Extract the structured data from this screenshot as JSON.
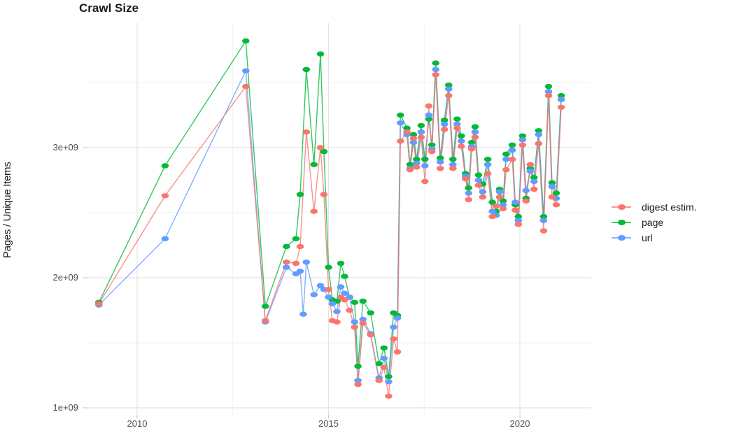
{
  "chart_data": {
    "type": "line",
    "title": "Crawl Size",
    "xlabel": "",
    "ylabel": "Pages / Unique Items",
    "values_unit": "1e9 (billions), as labeled on y-axis",
    "x_axis": {
      "ticks": [
        {
          "value": 2010,
          "label": "2010"
        },
        {
          "value": 2015,
          "label": "2015"
        },
        {
          "value": 2020,
          "label": "2020"
        }
      ],
      "minor_gridlines": [
        2012.5,
        2017.5
      ],
      "range": [
        2008.7,
        2021.85
      ]
    },
    "y_axis": {
      "ticks": [
        {
          "value": 1.0,
          "label": "1e+09"
        },
        {
          "value": 2.0,
          "label": "2e+09"
        },
        {
          "value": 3.0,
          "label": "3e+09"
        }
      ],
      "minor_gridlines": [
        1.5,
        2.5,
        3.5
      ],
      "range": [
        0.95,
        3.96
      ]
    },
    "grid": true,
    "legend_position": "right",
    "series": [
      {
        "name": "digest estim.",
        "color": "#F8766D",
        "points": [
          [
            2009.0,
            1.8
          ],
          [
            2010.73,
            2.63
          ],
          [
            2012.84,
            3.47
          ],
          [
            2013.35,
            1.67
          ],
          [
            2013.9,
            2.12
          ],
          [
            2014.15,
            2.11
          ],
          [
            2014.26,
            2.24
          ],
          [
            2014.42,
            3.12
          ],
          [
            2014.62,
            2.51
          ],
          [
            2014.79,
            3.0
          ],
          [
            2014.88,
            2.64
          ],
          [
            2015.0,
            1.91
          ],
          [
            2015.1,
            1.67
          ],
          [
            2015.22,
            1.66
          ],
          [
            2015.32,
            1.85
          ],
          [
            2015.42,
            1.83
          ],
          [
            2015.55,
            1.75
          ],
          [
            2015.68,
            1.62
          ],
          [
            2015.77,
            1.18
          ],
          [
            2015.9,
            1.65
          ],
          [
            2016.1,
            1.56
          ],
          [
            2016.32,
            1.21
          ],
          [
            2016.45,
            1.31
          ],
          [
            2016.57,
            1.09
          ],
          [
            2016.7,
            1.53
          ],
          [
            2016.8,
            1.43
          ],
          [
            2016.88,
            3.05
          ],
          [
            2017.05,
            3.12
          ],
          [
            2017.13,
            2.83
          ],
          [
            2017.22,
            3.07
          ],
          [
            2017.3,
            2.85
          ],
          [
            2017.42,
            3.08
          ],
          [
            2017.52,
            2.74
          ],
          [
            2017.62,
            3.32
          ],
          [
            2017.7,
            2.97
          ],
          [
            2017.8,
            3.56
          ],
          [
            2017.92,
            2.84
          ],
          [
            2018.03,
            3.14
          ],
          [
            2018.14,
            3.4
          ],
          [
            2018.25,
            2.84
          ],
          [
            2018.36,
            3.15
          ],
          [
            2018.47,
            3.01
          ],
          [
            2018.58,
            2.76
          ],
          [
            2018.66,
            2.6
          ],
          [
            2018.74,
            2.99
          ],
          [
            2018.83,
            3.08
          ],
          [
            2018.92,
            2.71
          ],
          [
            2019.03,
            2.62
          ],
          [
            2019.16,
            2.8
          ],
          [
            2019.28,
            2.47
          ],
          [
            2019.38,
            2.55
          ],
          [
            2019.47,
            2.62
          ],
          [
            2019.56,
            2.53
          ],
          [
            2019.64,
            2.83
          ],
          [
            2019.8,
            2.91
          ],
          [
            2019.88,
            2.52
          ],
          [
            2019.96,
            2.41
          ],
          [
            2020.07,
            3.02
          ],
          [
            2020.16,
            2.59
          ],
          [
            2020.27,
            2.87
          ],
          [
            2020.37,
            2.68
          ],
          [
            2020.49,
            3.03
          ],
          [
            2020.62,
            2.36
          ],
          [
            2020.75,
            3.4
          ],
          [
            2020.84,
            2.62
          ],
          [
            2020.95,
            2.56
          ],
          [
            2021.08,
            3.31
          ]
        ]
      },
      {
        "name": "page",
        "color": "#00BA38",
        "points": [
          [
            2009.0,
            1.81
          ],
          [
            2010.73,
            2.86
          ],
          [
            2012.84,
            3.82
          ],
          [
            2013.35,
            1.78
          ],
          [
            2013.9,
            2.24
          ],
          [
            2014.15,
            2.3
          ],
          [
            2014.26,
            2.64
          ],
          [
            2014.42,
            3.6
          ],
          [
            2014.62,
            2.87
          ],
          [
            2014.79,
            3.72
          ],
          [
            2014.88,
            2.97
          ],
          [
            2015.0,
            2.08
          ],
          [
            2015.1,
            1.83
          ],
          [
            2015.22,
            1.82
          ],
          [
            2015.32,
            2.11
          ],
          [
            2015.42,
            2.01
          ],
          [
            2015.55,
            1.85
          ],
          [
            2015.68,
            1.81
          ],
          [
            2015.77,
            1.32
          ],
          [
            2015.9,
            1.82
          ],
          [
            2016.1,
            1.73
          ],
          [
            2016.32,
            1.34
          ],
          [
            2016.45,
            1.46
          ],
          [
            2016.57,
            1.24
          ],
          [
            2016.7,
            1.73
          ],
          [
            2016.8,
            1.71
          ],
          [
            2016.88,
            3.25
          ],
          [
            2017.05,
            3.15
          ],
          [
            2017.13,
            2.87
          ],
          [
            2017.22,
            3.1
          ],
          [
            2017.3,
            2.91
          ],
          [
            2017.42,
            3.17
          ],
          [
            2017.52,
            2.91
          ],
          [
            2017.62,
            3.22
          ],
          [
            2017.7,
            3.02
          ],
          [
            2017.8,
            3.65
          ],
          [
            2017.92,
            2.92
          ],
          [
            2018.03,
            3.21
          ],
          [
            2018.14,
            3.48
          ],
          [
            2018.25,
            2.91
          ],
          [
            2018.36,
            3.22
          ],
          [
            2018.47,
            3.09
          ],
          [
            2018.58,
            2.8
          ],
          [
            2018.66,
            2.69
          ],
          [
            2018.74,
            3.04
          ],
          [
            2018.83,
            3.16
          ],
          [
            2018.92,
            2.79
          ],
          [
            2019.03,
            2.72
          ],
          [
            2019.16,
            2.91
          ],
          [
            2019.28,
            2.58
          ],
          [
            2019.38,
            2.51
          ],
          [
            2019.47,
            2.68
          ],
          [
            2019.56,
            2.59
          ],
          [
            2019.64,
            2.95
          ],
          [
            2019.8,
            3.02
          ],
          [
            2019.88,
            2.56
          ],
          [
            2019.96,
            2.47
          ],
          [
            2020.07,
            3.09
          ],
          [
            2020.16,
            2.61
          ],
          [
            2020.27,
            2.84
          ],
          [
            2020.37,
            2.77
          ],
          [
            2020.49,
            3.13
          ],
          [
            2020.62,
            2.47
          ],
          [
            2020.75,
            3.47
          ],
          [
            2020.84,
            2.73
          ],
          [
            2020.95,
            2.65
          ],
          [
            2021.08,
            3.4
          ]
        ]
      },
      {
        "name": "url",
        "color": "#619CFF",
        "points": [
          [
            2009.0,
            1.79
          ],
          [
            2010.73,
            2.3
          ],
          [
            2012.84,
            3.59
          ],
          [
            2013.35,
            1.66
          ],
          [
            2013.9,
            2.08
          ],
          [
            2014.15,
            2.03
          ],
          [
            2014.26,
            2.05
          ],
          [
            2014.34,
            1.72
          ],
          [
            2014.42,
            2.12
          ],
          [
            2014.62,
            1.87
          ],
          [
            2014.79,
            1.94
          ],
          [
            2014.88,
            1.91
          ],
          [
            2015.0,
            1.85
          ],
          [
            2015.1,
            1.8
          ],
          [
            2015.22,
            1.74
          ],
          [
            2015.32,
            1.93
          ],
          [
            2015.42,
            1.88
          ],
          [
            2015.55,
            1.85
          ],
          [
            2015.68,
            1.66
          ],
          [
            2015.77,
            1.21
          ],
          [
            2015.9,
            1.68
          ],
          [
            2016.1,
            1.57
          ],
          [
            2016.32,
            1.23
          ],
          [
            2016.45,
            1.38
          ],
          [
            2016.57,
            1.2
          ],
          [
            2016.7,
            1.62
          ],
          [
            2016.8,
            1.69
          ],
          [
            2016.88,
            3.19
          ],
          [
            2017.05,
            3.1
          ],
          [
            2017.13,
            2.84
          ],
          [
            2017.22,
            3.04
          ],
          [
            2017.3,
            2.88
          ],
          [
            2017.42,
            3.12
          ],
          [
            2017.52,
            2.86
          ],
          [
            2017.62,
            3.25
          ],
          [
            2017.7,
            2.99
          ],
          [
            2017.8,
            3.6
          ],
          [
            2017.92,
            2.89
          ],
          [
            2018.03,
            3.18
          ],
          [
            2018.14,
            3.45
          ],
          [
            2018.25,
            2.87
          ],
          [
            2018.36,
            3.18
          ],
          [
            2018.47,
            3.05
          ],
          [
            2018.58,
            2.78
          ],
          [
            2018.66,
            2.65
          ],
          [
            2018.74,
            3.01
          ],
          [
            2018.83,
            3.12
          ],
          [
            2018.92,
            2.75
          ],
          [
            2019.03,
            2.66
          ],
          [
            2019.16,
            2.87
          ],
          [
            2019.28,
            2.51
          ],
          [
            2019.38,
            2.48
          ],
          [
            2019.47,
            2.66
          ],
          [
            2019.56,
            2.56
          ],
          [
            2019.64,
            2.91
          ],
          [
            2019.8,
            2.98
          ],
          [
            2019.88,
            2.58
          ],
          [
            2019.96,
            2.44
          ],
          [
            2020.07,
            3.06
          ],
          [
            2020.16,
            2.67
          ],
          [
            2020.27,
            2.82
          ],
          [
            2020.37,
            2.74
          ],
          [
            2020.49,
            3.1
          ],
          [
            2020.62,
            2.44
          ],
          [
            2020.75,
            3.43
          ],
          [
            2020.84,
            2.7
          ],
          [
            2020.95,
            2.61
          ],
          [
            2021.08,
            3.37
          ]
        ]
      }
    ]
  },
  "colors": {
    "grid_major": "#e3e3e3",
    "grid_minor": "#f0f0f0",
    "tick": "#c8c8c8",
    "tick_text": "#4d4d4d",
    "title_text": "#1a1a1a"
  }
}
